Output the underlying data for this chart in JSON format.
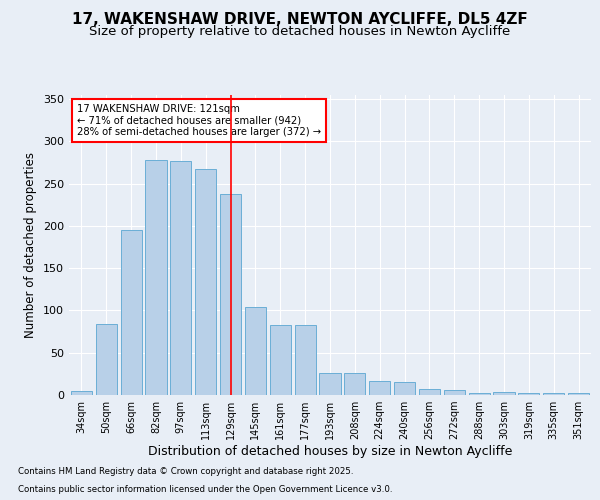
{
  "title_line1": "17, WAKENSHAW DRIVE, NEWTON AYCLIFFE, DL5 4ZF",
  "title_line2": "Size of property relative to detached houses in Newton Aycliffe",
  "xlabel": "Distribution of detached houses by size in Newton Aycliffe",
  "ylabel": "Number of detached properties",
  "footer_line1": "Contains HM Land Registry data © Crown copyright and database right 2025.",
  "footer_line2": "Contains public sector information licensed under the Open Government Licence v3.0.",
  "categories": [
    "34sqm",
    "50sqm",
    "66sqm",
    "82sqm",
    "97sqm",
    "113sqm",
    "129sqm",
    "145sqm",
    "161sqm",
    "177sqm",
    "193sqm",
    "208sqm",
    "224sqm",
    "240sqm",
    "256sqm",
    "272sqm",
    "288sqm",
    "303sqm",
    "319sqm",
    "335sqm",
    "351sqm"
  ],
  "values": [
    5,
    84,
    195,
    278,
    277,
    268,
    238,
    104,
    83,
    83,
    26,
    26,
    17,
    15,
    7,
    6,
    2,
    3,
    2,
    2,
    2
  ],
  "bar_color": "#b8d0e8",
  "bar_edge_color": "#6aaed6",
  "red_line_x": 6.0,
  "annotation_line1": "17 WAKENSHAW DRIVE: 121sqm",
  "annotation_line2": "← 71% of detached houses are smaller (942)",
  "annotation_line3": "28% of semi-detached houses are larger (372) →",
  "ylim": [
    0,
    355
  ],
  "yticks": [
    0,
    50,
    100,
    150,
    200,
    250,
    300,
    350
  ],
  "bg_color": "#e8eef6",
  "plot_bg_color": "#e8eef6",
  "grid_color": "#ffffff",
  "title1_fontsize": 11,
  "title2_fontsize": 9.5,
  "xlabel_fontsize": 9,
  "ylabel_fontsize": 8.5
}
